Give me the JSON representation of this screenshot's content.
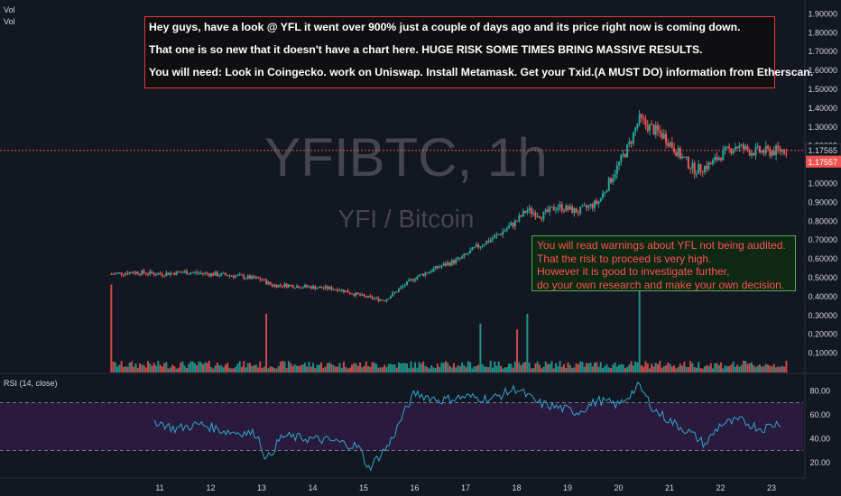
{
  "chart_data": [
    {
      "type": "candlestick",
      "symbol": "YFIBTC, 1h",
      "description": "YFI / Bitcoin",
      "legend": [
        "Vol",
        "Vol"
      ],
      "price_ticks": [
        "1.90000",
        "1.80000",
        "1.70000",
        "1.60000",
        "1.50000",
        "1.40000",
        "1.30000",
        "1.20000",
        "1.10000",
        "1.00000",
        "0.90000",
        "0.80000",
        "0.70000",
        "0.60000",
        "0.50000",
        "0.40000",
        "0.30000",
        "0.20000",
        "0.10000"
      ],
      "price_labels": {
        "last": "1.17565",
        "current": "1.17557"
      },
      "x_ticks": [
        "11",
        "12",
        "13",
        "14",
        "15",
        "16",
        "17",
        "18",
        "19",
        "20",
        "21",
        "22",
        "23"
      ],
      "ylim": [
        0.05,
        1.95
      ],
      "x_range": [
        10.0,
        23.4
      ],
      "trend": [
        {
          "x": 10.05,
          "y": 0.52
        },
        {
          "x": 10.5,
          "y": 0.53
        },
        {
          "x": 11.0,
          "y": 0.52
        },
        {
          "x": 11.5,
          "y": 0.53
        },
        {
          "x": 12.0,
          "y": 0.52
        },
        {
          "x": 12.5,
          "y": 0.51
        },
        {
          "x": 13.0,
          "y": 0.49
        },
        {
          "x": 13.2,
          "y": 0.46
        },
        {
          "x": 13.5,
          "y": 0.46
        },
        {
          "x": 14.0,
          "y": 0.45
        },
        {
          "x": 14.5,
          "y": 0.44
        },
        {
          "x": 15.0,
          "y": 0.4
        },
        {
          "x": 15.4,
          "y": 0.38
        },
        {
          "x": 15.6,
          "y": 0.42
        },
        {
          "x": 16.0,
          "y": 0.5
        },
        {
          "x": 16.5,
          "y": 0.56
        },
        {
          "x": 16.9,
          "y": 0.6
        },
        {
          "x": 17.2,
          "y": 0.66
        },
        {
          "x": 17.6,
          "y": 0.72
        },
        {
          "x": 18.0,
          "y": 0.8
        },
        {
          "x": 18.2,
          "y": 0.86
        },
        {
          "x": 18.5,
          "y": 0.83
        },
        {
          "x": 18.8,
          "y": 0.88
        },
        {
          "x": 19.2,
          "y": 0.85
        },
        {
          "x": 19.6,
          "y": 0.9
        },
        {
          "x": 19.9,
          "y": 1.05
        },
        {
          "x": 20.2,
          "y": 1.2
        },
        {
          "x": 20.4,
          "y": 1.34
        },
        {
          "x": 20.6,
          "y": 1.3
        },
        {
          "x": 20.9,
          "y": 1.25
        },
        {
          "x": 21.2,
          "y": 1.15
        },
        {
          "x": 21.5,
          "y": 1.07
        },
        {
          "x": 21.8,
          "y": 1.1
        },
        {
          "x": 22.0,
          "y": 1.15
        },
        {
          "x": 22.3,
          "y": 1.2
        },
        {
          "x": 22.6,
          "y": 1.17
        },
        {
          "x": 23.0,
          "y": 1.17
        },
        {
          "x": 23.3,
          "y": 1.18
        }
      ],
      "volume_peaks": [
        {
          "x": 10.05,
          "v": 0.45
        },
        {
          "x": 13.1,
          "v": 0.3
        },
        {
          "x": 18.0,
          "v": 0.22
        },
        {
          "x": 18.2,
          "v": 0.3
        },
        {
          "x": 20.4,
          "v": 0.42
        },
        {
          "x": 17.3,
          "v": 0.25
        }
      ],
      "volume_ylim": [
        0,
        0.6
      ]
    },
    {
      "type": "line",
      "title": "RSI (14, close)",
      "y_ticks": [
        "80.00",
        "60.00",
        "40.00",
        "20.00"
      ],
      "band": [
        30,
        70
      ],
      "ylim": [
        10,
        90
      ],
      "points": [
        {
          "x": 10.9,
          "y": 55
        },
        {
          "x": 11.3,
          "y": 48
        },
        {
          "x": 11.8,
          "y": 52
        },
        {
          "x": 12.3,
          "y": 46
        },
        {
          "x": 12.9,
          "y": 44
        },
        {
          "x": 13.1,
          "y": 22
        },
        {
          "x": 13.4,
          "y": 42
        },
        {
          "x": 13.9,
          "y": 40
        },
        {
          "x": 14.4,
          "y": 38
        },
        {
          "x": 14.9,
          "y": 33
        },
        {
          "x": 15.1,
          "y": 15
        },
        {
          "x": 15.5,
          "y": 35
        },
        {
          "x": 15.8,
          "y": 62
        },
        {
          "x": 16.0,
          "y": 78
        },
        {
          "x": 16.5,
          "y": 72
        },
        {
          "x": 17.0,
          "y": 75
        },
        {
          "x": 17.5,
          "y": 73
        },
        {
          "x": 18.0,
          "y": 82
        },
        {
          "x": 18.4,
          "y": 70
        },
        {
          "x": 18.8,
          "y": 66
        },
        {
          "x": 19.2,
          "y": 62
        },
        {
          "x": 19.6,
          "y": 72
        },
        {
          "x": 20.0,
          "y": 68
        },
        {
          "x": 20.4,
          "y": 84
        },
        {
          "x": 20.7,
          "y": 64
        },
        {
          "x": 21.0,
          "y": 55
        },
        {
          "x": 21.4,
          "y": 45
        },
        {
          "x": 21.7,
          "y": 35
        },
        {
          "x": 22.0,
          "y": 52
        },
        {
          "x": 22.4,
          "y": 55
        },
        {
          "x": 22.8,
          "y": 48
        },
        {
          "x": 23.2,
          "y": 54
        }
      ]
    }
  ],
  "annotations": {
    "top": [
      "Hey guys, have a look @ YFL it went over 900% just a couple of days ago and its price right now is coming down.",
      "That one is so new that it doesn't have a chart here.  HUGE RISK SOME TIMES BRING MASSIVE RESULTS.",
      "You will need: Look in Coingecko. work on Uniswap. Install Metamask. Get your Txid.(A MUST DO) information from Etherscan."
    ],
    "warning": [
      "You will read warnings about YFL not being audited.",
      "That the risk to proceed is very high.",
      "However it is good to investigate further,",
      "do your own research and make your own decision."
    ]
  },
  "colors": {
    "background": "#131722",
    "up": "#26a69a",
    "down": "#ef5350",
    "rsi_line": "#2fa5c9",
    "rsi_band": "#2a1a3d",
    "axis_text": "#d1d4dc",
    "price_tag": "#ef5350",
    "watermark": "#434651"
  }
}
